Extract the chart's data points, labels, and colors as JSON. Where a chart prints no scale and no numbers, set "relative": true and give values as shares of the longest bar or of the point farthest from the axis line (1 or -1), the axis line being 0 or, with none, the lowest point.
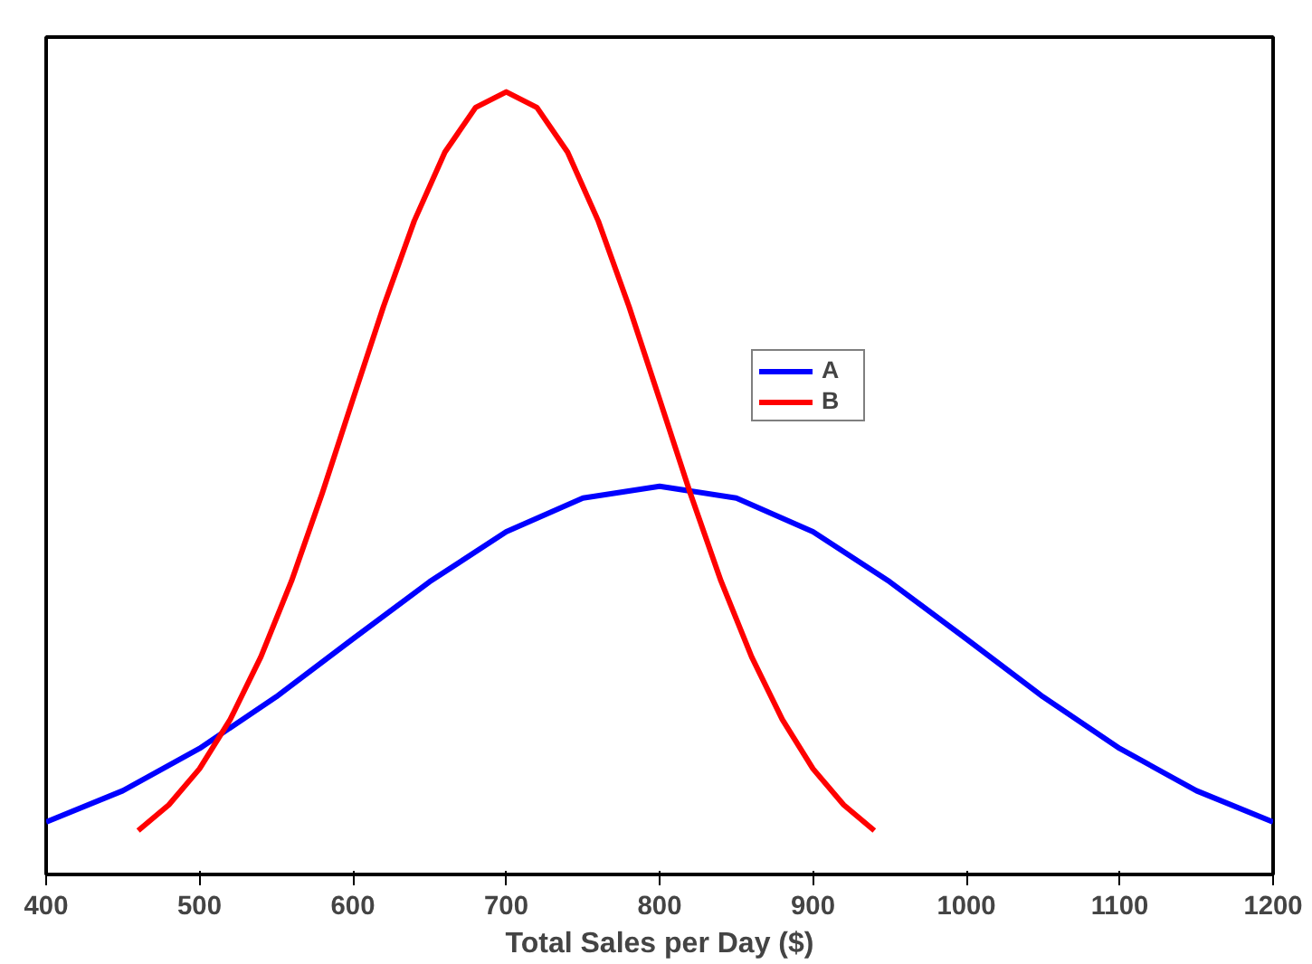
{
  "chart_data": {
    "type": "line",
    "xlabel": "Total Sales per Day ($)",
    "relative": true,
    "xlim": [
      400,
      1200
    ],
    "xticks": [
      400,
      500,
      600,
      700,
      800,
      900,
      1000,
      1100,
      1200
    ],
    "legend": "top right",
    "grid": false,
    "series": [
      {
        "name": "A",
        "color": "#0000ff",
        "x": [
          400,
          450,
          500,
          550,
          600,
          650,
          700,
          750,
          800,
          850,
          900,
          950,
          1000,
          1050,
          1100,
          1150,
          1200
        ],
        "values": [
          0.067,
          0.107,
          0.161,
          0.227,
          0.301,
          0.374,
          0.438,
          0.481,
          0.496,
          0.481,
          0.438,
          0.374,
          0.301,
          0.227,
          0.161,
          0.107,
          0.067
        ]
      },
      {
        "name": "B",
        "color": "#ff0000",
        "x": [
          460,
          480,
          500,
          520,
          540,
          560,
          580,
          600,
          620,
          640,
          660,
          680,
          700,
          720,
          740,
          760,
          780,
          800,
          820,
          840,
          860,
          880,
          900,
          920,
          940
        ],
        "values": [
          0.056,
          0.089,
          0.135,
          0.198,
          0.278,
          0.375,
          0.487,
          0.607,
          0.726,
          0.835,
          0.923,
          0.98,
          1,
          0.98,
          0.923,
          0.835,
          0.726,
          0.607,
          0.487,
          0.375,
          0.278,
          0.198,
          0.135,
          0.089,
          0.056
        ]
      }
    ]
  }
}
